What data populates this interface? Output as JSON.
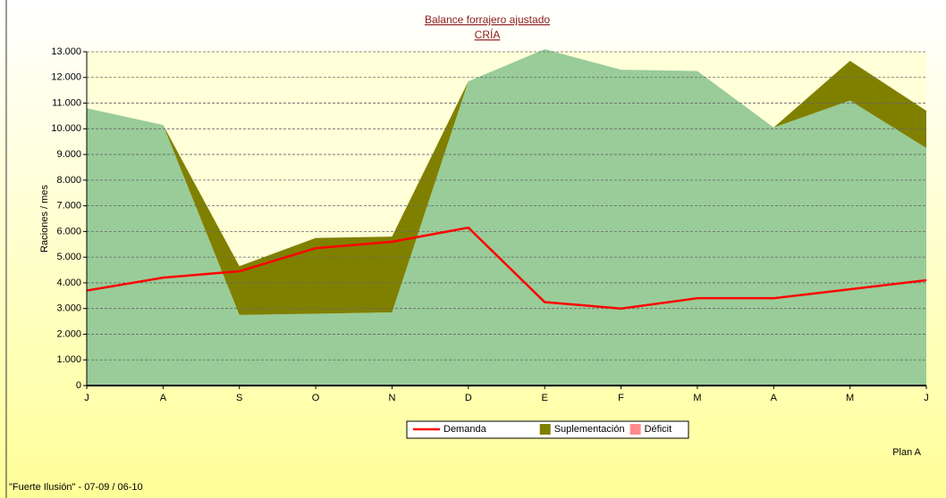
{
  "chart_data": {
    "type": "stacked-area",
    "title": "Balance forrajero ajustado",
    "subtitle": "CRÍA",
    "y_label": "Raciones / mes",
    "categories": [
      "J",
      "A",
      "S",
      "O",
      "N",
      "D",
      "E",
      "F",
      "M",
      "A",
      "M",
      "J"
    ],
    "series": [
      {
        "color": "#99cc99",
        "kind": "area",
        "values": [
          10800,
          10150,
          2750,
          2800,
          2850,
          11850,
          13100,
          12300,
          12250,
          10050,
          11100,
          9250
        ]
      },
      {
        "name": "Suplementación",
        "color": "#808000",
        "kind": "area",
        "values": [
          0,
          0,
          1900,
          2950,
          2950,
          0,
          0,
          0,
          0,
          0,
          1550,
          1450
        ]
      },
      {
        "name": "Déficit",
        "color": "#ff8c8c",
        "kind": "area",
        "values": [
          0,
          0,
          0,
          0,
          0,
          0,
          0,
          0,
          0,
          0,
          0,
          0
        ]
      },
      {
        "name": "Demanda",
        "color": "#ff0000",
        "kind": "line",
        "values": [
          3700,
          4200,
          4450,
          5350,
          5600,
          6150,
          3250,
          3000,
          3400,
          3400,
          3750,
          4100
        ]
      }
    ],
    "legend_order": [
      3,
      1,
      2
    ],
    "ylim": [
      0,
      13000
    ],
    "yticks": [
      0,
      {
        "value": 1000,
        "label": "1.000"
      },
      {
        "value": 2000,
        "label": "2.000"
      },
      {
        "value": 3000,
        "label": "3.000"
      },
      {
        "value": 4000,
        "label": "4.000"
      },
      {
        "value": 5000,
        "label": "5.000"
      },
      {
        "value": 6000,
        "label": "6.000"
      },
      {
        "value": 7000,
        "label": "7.000"
      },
      {
        "value": 8000,
        "label": "8.000"
      },
      {
        "value": 9000,
        "label": "9.000"
      },
      {
        "value": 10000,
        "label": "10.000"
      },
      {
        "value": 11000,
        "label": "11.000"
      },
      {
        "value": 12000,
        "label": "12.000"
      },
      {
        "value": 13000,
        "label": "13.000"
      }
    ],
    "grid": true,
    "plan_label": "Plan A",
    "footer": "\"Fuerte Ilusión\" - 07-09 / 06-10"
  }
}
